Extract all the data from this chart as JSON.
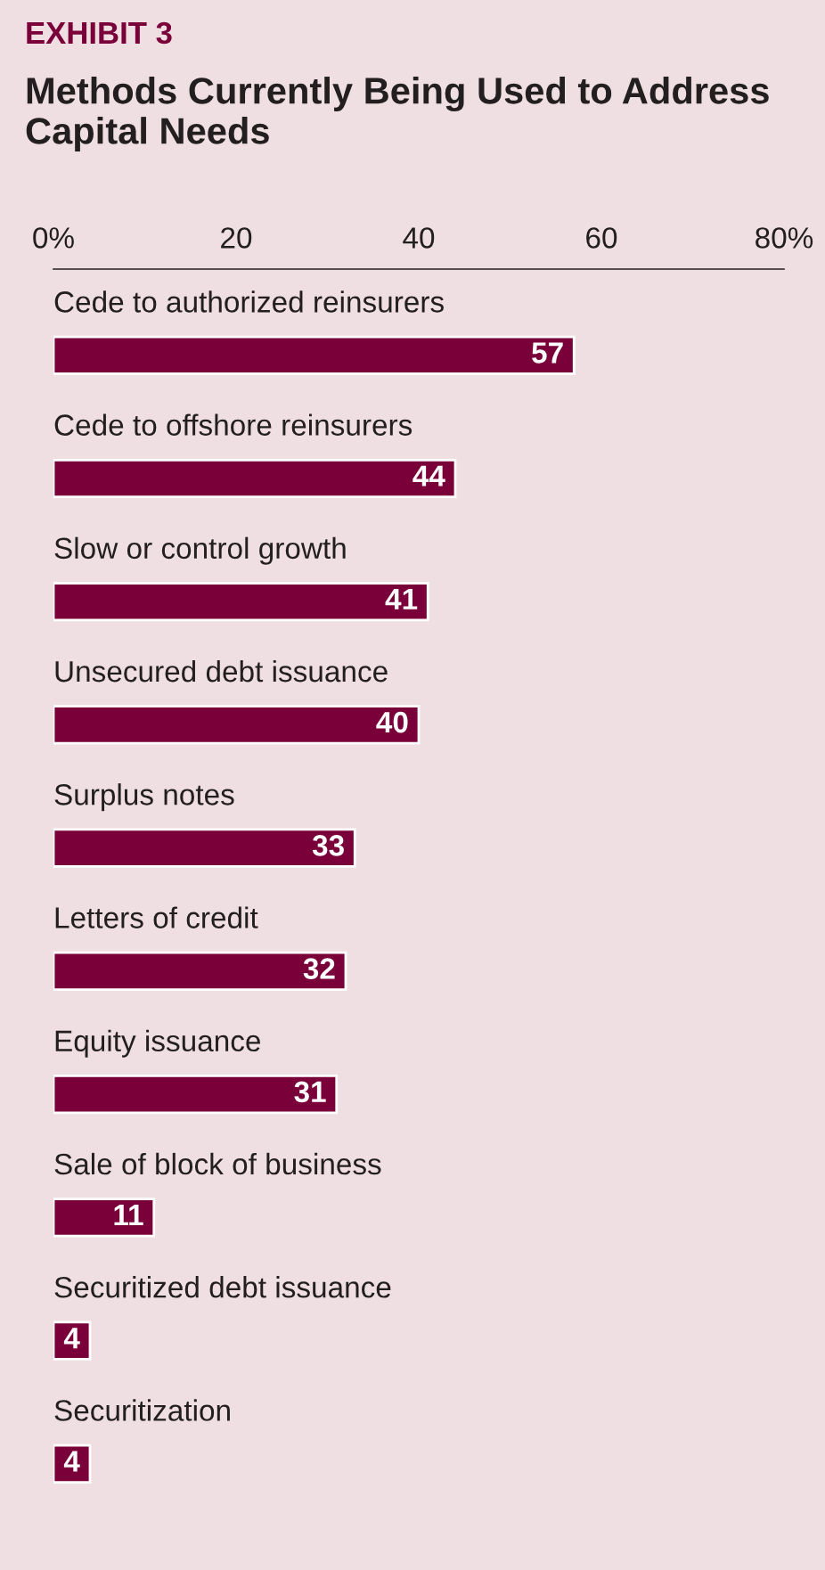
{
  "chart_data": {
    "type": "bar",
    "orientation": "horizontal",
    "title": "EXHIBIT 3",
    "subtitle": "Methods Currently Being Used to Address Capital Needs",
    "categories": [
      "Cede to authorized reinsurers",
      "Cede to offshore reinsurers",
      "Slow or control growth",
      "Unsecured debt issuance",
      "Surplus notes",
      "Letters of credit",
      "Equity issuance",
      "Sale of block of business",
      "Securitized debt issuance",
      "Securitization"
    ],
    "values": [
      57,
      44,
      41,
      40,
      33,
      32,
      31,
      11,
      4,
      4
    ],
    "color": "#7a0039",
    "xlim": [
      0,
      80
    ],
    "xticks": [
      {
        "value": 0,
        "label": "0%"
      },
      20,
      40,
      60,
      {
        "value": 80,
        "label": "80%"
      }
    ],
    "tick_labels": "x",
    "data_labels": true,
    "grid": false,
    "legend": false
  }
}
